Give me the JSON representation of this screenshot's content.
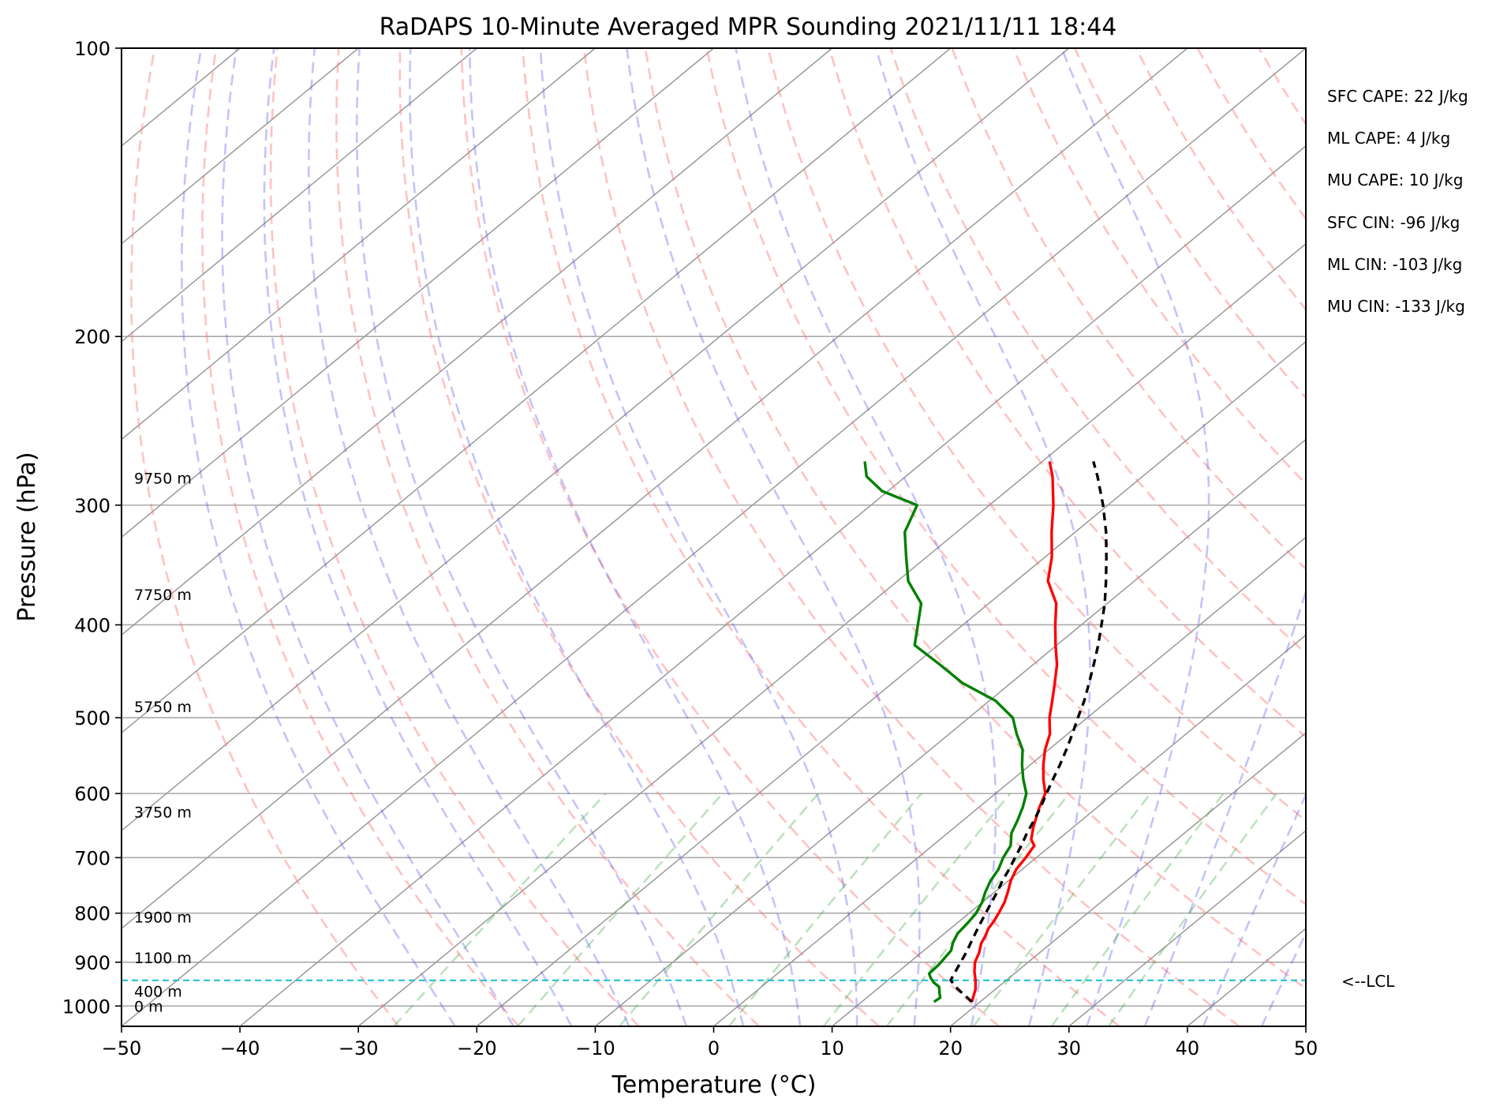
{
  "chart_data": {
    "type": "line",
    "title": "RaDAPS 10-Minute Averaged MPR Sounding 2021/11/11 18:44",
    "xlabel": "Temperature (°C)",
    "ylabel": "Pressure (hPa)",
    "xlim": [
      -50,
      50
    ],
    "ylim": [
      1050,
      100
    ],
    "y_scale": "log",
    "skew": true,
    "x_ticks": [
      "−50",
      "−40",
      "−30",
      "−20",
      "−10",
      "0",
      "10",
      "20",
      "30",
      "40",
      "50"
    ],
    "x_tick_values": [
      -50,
      -40,
      -30,
      -20,
      -10,
      0,
      10,
      20,
      30,
      40,
      50
    ],
    "y_ticks": [
      100,
      200,
      300,
      400,
      500,
      600,
      700,
      800,
      900,
      1000
    ],
    "grid": true,
    "height_labels": [
      {
        "label": "9750 m",
        "p": 281
      },
      {
        "label": "7750 m",
        "p": 372
      },
      {
        "label": "5750 m",
        "p": 487
      },
      {
        "label": "3750 m",
        "p": 627
      },
      {
        "label": "1900 m",
        "p": 807
      },
      {
        "label": "1100 m",
        "p": 890
      },
      {
        "label": "400 m",
        "p": 965
      },
      {
        "label": "0 m",
        "p": 1000
      }
    ],
    "annotations": [
      "SFC CAPE: 22 J/kg",
      "ML CAPE: 4 J/kg",
      "MU CAPE: 10 J/kg",
      "SFC CIN: -96 J/kg",
      "ML CIN: -103 J/kg",
      "MU CIN: -133 J/kg"
    ],
    "lcl": {
      "label": "<--LCL",
      "p": 940
    },
    "series": [
      {
        "role": "temperature",
        "color": "#ff0000",
        "p": [
          990,
          975,
          960,
          940,
          920,
          900,
          880,
          860,
          845,
          830,
          815,
          800,
          780,
          760,
          740,
          720,
          700,
          680,
          670,
          650,
          620,
          600,
          580,
          560,
          540,
          520,
          500,
          480,
          460,
          440,
          420,
          400,
          380,
          360,
          340,
          320,
          300,
          280,
          270
        ],
        "values": [
          19.3,
          18.8,
          18.3,
          17.4,
          16.4,
          15.5,
          14.9,
          14.1,
          13.7,
          13.2,
          12.9,
          12.5,
          11.9,
          11.1,
          10.2,
          9.5,
          9.1,
          8.6,
          7.7,
          6.6,
          5.1,
          4.2,
          2.6,
          1.1,
          -0.3,
          -1.5,
          -3.2,
          -4.7,
          -6.3,
          -8.0,
          -10.1,
          -12.2,
          -14.3,
          -17.3,
          -19.4,
          -22.0,
          -24.6,
          -27.6,
          -29.4
        ]
      },
      {
        "role": "dewpoint",
        "color": "#008000",
        "p": [
          990,
          980,
          970,
          955,
          945,
          935,
          925,
          905,
          890,
          875,
          860,
          840,
          820,
          800,
          780,
          760,
          740,
          720,
          700,
          680,
          660,
          640,
          620,
          600,
          580,
          560,
          540,
          520,
          500,
          480,
          460,
          440,
          420,
          400,
          380,
          360,
          340,
          320,
          300,
          290,
          280,
          270
        ],
        "values": [
          16.1,
          16.2,
          15.7,
          15.0,
          14.1,
          13.4,
          12.8,
          12.7,
          12.5,
          12.3,
          11.7,
          11.1,
          10.9,
          10.6,
          10.0,
          9.2,
          8.5,
          8.0,
          7.2,
          6.6,
          5.4,
          4.6,
          3.7,
          2.6,
          0.9,
          -0.7,
          -2.2,
          -4.3,
          -6.3,
          -9.5,
          -14.1,
          -17.9,
          -22.0,
          -23.8,
          -25.7,
          -29.1,
          -31.7,
          -34.4,
          -36.1,
          -40.5,
          -43.3,
          -45.0
        ]
      },
      {
        "role": "parcel",
        "color": "#000000",
        "dashed": true,
        "p": [
          990,
          960,
          940,
          920,
          900,
          880,
          860,
          840,
          820,
          800,
          780,
          760,
          740,
          720,
          700,
          680,
          660,
          640,
          620,
          600,
          580,
          560,
          540,
          520,
          500,
          480,
          460,
          440,
          420,
          400,
          380,
          360,
          340,
          320,
          300,
          280,
          270
        ],
        "values": [
          19.3,
          16.8,
          15.3,
          14.8,
          14.3,
          13.8,
          13.2,
          12.6,
          12.0,
          11.4,
          10.8,
          10.2,
          9.5,
          8.9,
          8.2,
          7.5,
          6.7,
          6.0,
          5.2,
          4.3,
          3.4,
          2.5,
          1.5,
          0.4,
          -0.8,
          -2.0,
          -3.4,
          -4.9,
          -6.5,
          -8.3,
          -10.2,
          -12.4,
          -14.8,
          -17.4,
          -20.4,
          -23.8,
          -25.7
        ]
      }
    ]
  }
}
